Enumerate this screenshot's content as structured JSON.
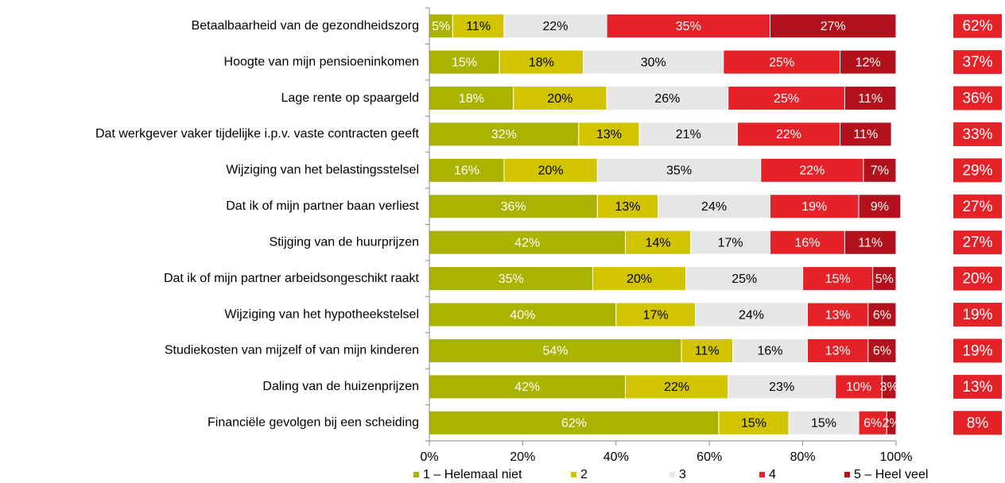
{
  "chart_data": {
    "type": "stacked_barh",
    "categories": [
      "Betaalbaarheid van de gezondheidszorg",
      "Hoogte van mijn pensioeninkomen",
      "Lage rente op spaargeld",
      "Dat werkgever vaker tijdelijke i.p.v. vaste contracten geeft",
      "Wijziging van het belastingsstelsel",
      "Dat ik of mijn partner baan verliest",
      "Stijging van de huurprijzen",
      "Dat ik of mijn partner arbeidsongeschikt raakt",
      "Wijziging van het hypotheekstelsel",
      "Studiekosten van mijzelf of van mijn kinderen",
      "Daling van de huizenprijzen",
      "Financiële gevolgen bij een scheiding"
    ],
    "series": [
      {
        "name": "1 – Helemaal niet",
        "color": "#a9b300",
        "label_color": "#ffffff",
        "values": [
          5,
          15,
          18,
          32,
          16,
          36,
          42,
          35,
          40,
          54,
          42,
          62
        ],
        "value_labels": [
          "5%",
          "15%",
          "18%",
          "32%",
          "16%",
          "36%",
          "42%",
          "35%",
          "40%",
          "54%",
          "42%",
          "62%"
        ]
      },
      {
        "name": "2",
        "color": "#d2c500",
        "label_color": "#000000",
        "values": [
          11,
          18,
          20,
          13,
          20,
          13,
          14,
          20,
          17,
          11,
          22,
          15
        ],
        "value_labels": [
          "11%",
          "18%",
          "20%",
          "13%",
          "20%",
          "13%",
          "14%",
          "20%",
          "17%",
          "11%",
          "22%",
          "15%"
        ]
      },
      {
        "name": "3",
        "color": "#e6e6e6",
        "label_color": "#000000",
        "values": [
          22,
          30,
          26,
          21,
          35,
          24,
          17,
          25,
          24,
          16,
          23,
          15
        ],
        "value_labels": [
          "22%",
          "30%",
          "26%",
          "21%",
          "35%",
          "24%",
          "17%",
          "25%",
          "24%",
          "16%",
          "23%",
          "15%"
        ]
      },
      {
        "name": "4",
        "color": "#e62229",
        "label_color": "#ffffff",
        "values": [
          35,
          25,
          25,
          22,
          22,
          19,
          16,
          15,
          13,
          13,
          10,
          6
        ],
        "value_labels": [
          "35%",
          "25%",
          "25%",
          "22%",
          "22%",
          "19%",
          "16%",
          "15%",
          "13%",
          "13%",
          "10%",
          "6%"
        ]
      },
      {
        "name": "5 – Heel veel",
        "color": "#b3121c",
        "label_color": "#ffffff",
        "values": [
          27,
          12,
          11,
          11,
          7,
          9,
          11,
          5,
          6,
          6,
          3,
          2
        ],
        "value_labels": [
          "27%",
          "12%",
          "11%",
          "11%",
          "7%",
          "9%",
          "11%",
          "5%",
          "6%",
          "6%",
          "3%",
          "2%"
        ]
      }
    ],
    "side_labels": {
      "color": "#e62229",
      "values": [
        62,
        37,
        36,
        33,
        29,
        27,
        27,
        20,
        19,
        19,
        13,
        8
      ],
      "value_labels": [
        "62%",
        "37%",
        "36%",
        "33%",
        "29%",
        "27%",
        "27%",
        "20%",
        "19%",
        "19%",
        "13%",
        "8%"
      ]
    },
    "xlim": [
      0,
      100
    ],
    "xticks": [
      {
        "value": 0,
        "label": "0%"
      },
      {
        "value": 20,
        "label": "20%"
      },
      {
        "value": 40,
        "label": "40%"
      },
      {
        "value": 60,
        "label": "60%"
      },
      {
        "value": 80,
        "label": "80%"
      },
      {
        "value": 100,
        "label": "100%"
      }
    ],
    "grid": false,
    "legend": "bottom"
  }
}
